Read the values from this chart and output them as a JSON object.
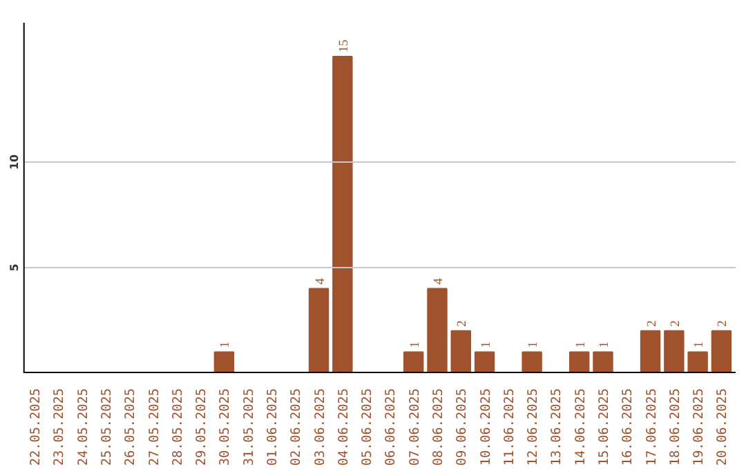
{
  "chart_data": {
    "type": "bar",
    "categories": [
      "22.05.2025",
      "23.05.2025",
      "24.05.2025",
      "25.05.2025",
      "26.05.2025",
      "27.05.2025",
      "28.05.2025",
      "29.05.2025",
      "30.05.2025",
      "31.05.2025",
      "01.06.2025",
      "02.06.2025",
      "03.06.2025",
      "04.06.2025",
      "05.06.2025",
      "06.06.2025",
      "07.06.2025",
      "08.06.2025",
      "09.06.2025",
      "10.06.2025",
      "11.06.2025",
      "12.06.2025",
      "13.06.2025",
      "14.06.2025",
      "15.06.2025",
      "16.06.2025",
      "17.06.2025",
      "18.06.2025",
      "19.06.2025",
      "20.06.2025"
    ],
    "values": [
      0,
      0,
      0,
      0,
      0,
      0,
      0,
      0,
      1,
      0,
      0,
      0,
      4,
      15,
      0,
      0,
      1,
      4,
      2,
      1,
      0,
      1,
      0,
      1,
      1,
      0,
      2,
      2,
      1,
      2
    ],
    "value_labels": [
      null,
      null,
      null,
      null,
      null,
      null,
      null,
      null,
      "1",
      null,
      null,
      null,
      "4",
      "15",
      null,
      null,
      "1",
      "4",
      "2",
      "1",
      null,
      "1",
      null,
      "1",
      "1",
      null,
      "2",
      "2",
      "1",
      "2"
    ],
    "color": "#a0522d",
    "ylim": [
      0,
      16.6
    ],
    "yticks": [
      5,
      10
    ],
    "grid": "y"
  }
}
